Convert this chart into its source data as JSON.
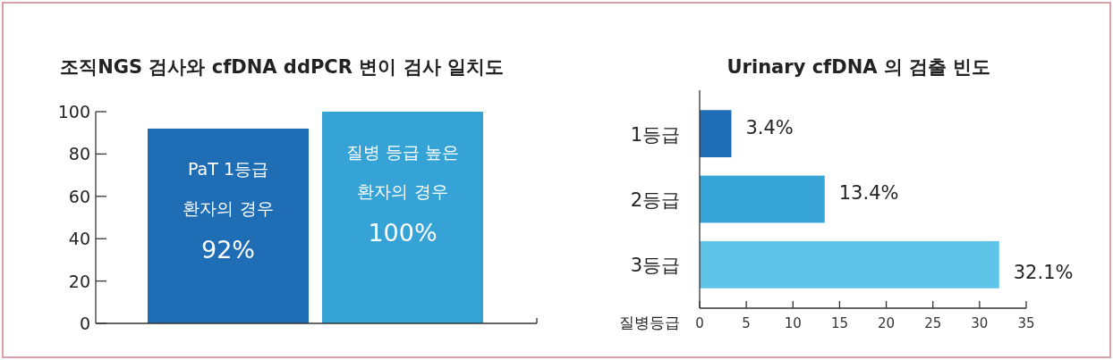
{
  "chart_data": [
    {
      "type": "bar",
      "title": "조직NGS 검사와 cfDNA ddPCR 변이 검사 일치도",
      "categories": [
        "PaT 1등급 환자의 경우",
        "질병 등급 높은 환자의 경우"
      ],
      "values": [
        92,
        100
      ],
      "value_labels": [
        "92%",
        "100%"
      ],
      "colors": [
        "#1f6db5",
        "#35a3d6"
      ],
      "ylim": [
        0,
        100
      ],
      "yticks": [
        0,
        20,
        40,
        60,
        80,
        100
      ]
    },
    {
      "type": "bar",
      "orientation": "horizontal",
      "title": "Urinary cfDNA 의 검출 빈도",
      "categories": [
        "1등급",
        "2등급",
        "3등급"
      ],
      "values": [
        3.4,
        13.4,
        32.1
      ],
      "value_labels": [
        "3.4%",
        "13.4%",
        "32.1%"
      ],
      "colors": [
        "#1f6db5",
        "#36a4d6",
        "#5ec4e8"
      ],
      "xlim": [
        0,
        35
      ],
      "xticks": [
        0,
        5,
        10,
        15,
        20,
        25,
        30,
        35
      ],
      "ylabel": "질병등급"
    }
  ]
}
